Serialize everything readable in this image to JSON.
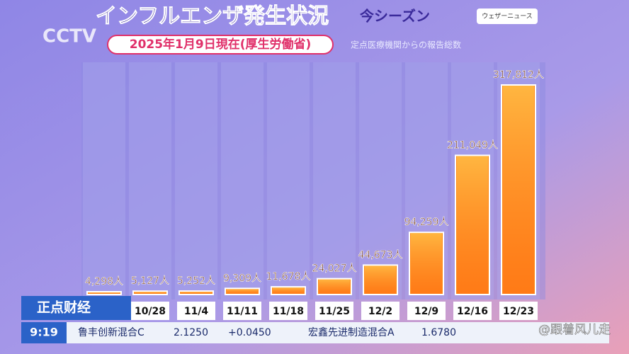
{
  "header": {
    "title": "インフルエンザ発生状況",
    "season": "今シーズン",
    "date": "2025年1月9日現在(厚生労働省)",
    "source_note": "定点医療機関からの報告総数",
    "logo": "ウェザーニュース",
    "channel": "CCTV"
  },
  "chart_data": {
    "type": "bar",
    "categories": [
      null,
      "10/28",
      "11/4",
      "11/11",
      "11/18",
      "11/25",
      "12/2",
      "12/9",
      "12/16",
      "12/23"
    ],
    "values": [
      4298,
      5127,
      5252,
      9309,
      11678,
      24027,
      44673,
      94259,
      211049,
      317812
    ],
    "value_labels": [
      "4,298人",
      "5,127人",
      "5,252人",
      "9,309人",
      "11,678人",
      "24,027人",
      "44,673人",
      "94,259人",
      "211,049人",
      "317,812人"
    ],
    "color": "#ff8c1a"
  },
  "ticker": {
    "program": "正点财经",
    "time": "9:19",
    "items": [
      {
        "name": "鲁丰创新混合C",
        "price": "2.1250",
        "change": "+0.0450"
      },
      {
        "name": "宏鑫先进制造混合A",
        "price": "1.6780"
      }
    ]
  },
  "watermark": "@跟着风儿走"
}
